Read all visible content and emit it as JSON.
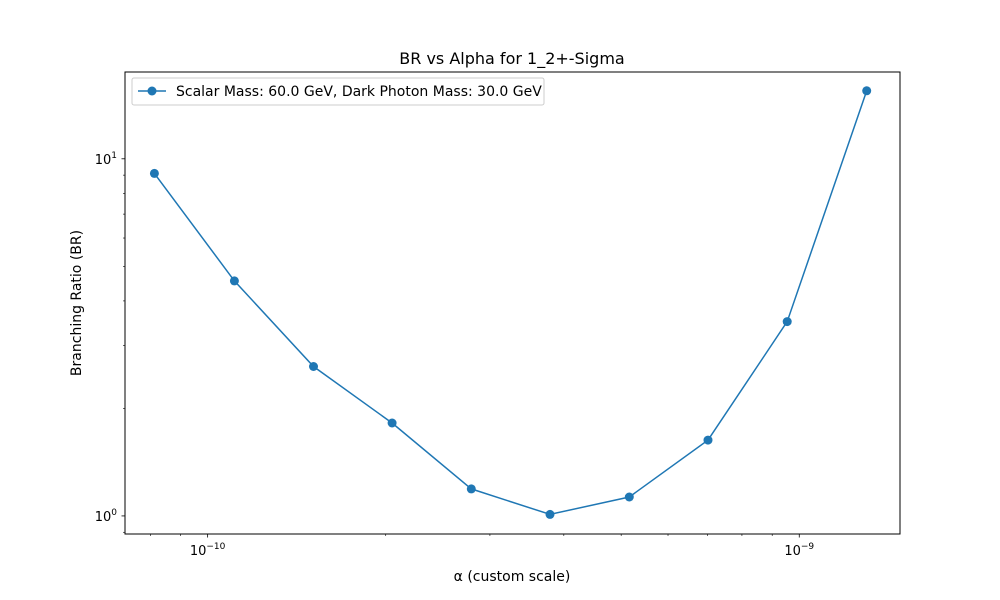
{
  "chart_data": {
    "type": "line",
    "title": "BR vs Alpha for 1_2+-Sigma",
    "xlabel": "α (custom scale)",
    "ylabel": "Branching Ratio (BR)",
    "x_scale": "log",
    "y_scale": "log",
    "xlim": [
      7.25e-11,
      1.48e-09
    ],
    "ylim": [
      0.89,
      17.5
    ],
    "x_ticks": [
      {
        "value": 1e-10,
        "base": "10",
        "exp": "−10"
      },
      {
        "value": 1e-09,
        "base": "10",
        "exp": "−9"
      }
    ],
    "y_ticks": [
      {
        "value": 1,
        "base": "10",
        "exp": "0"
      },
      {
        "value": 10,
        "base": "10",
        "exp": "1"
      }
    ],
    "grid": false,
    "legend_position": "upper-left",
    "series": [
      {
        "name": "Scalar Mass: 60.0 GeV, Dark Photon Mass: 30.0 GeV",
        "color": "#1f77b4",
        "marker": "circle",
        "x": [
          8.13e-11,
          1.11e-10,
          1.51e-10,
          2.05e-10,
          2.79e-10,
          3.79e-10,
          5.16e-10,
          7.01e-10,
          9.54e-10,
          1.3e-09
        ],
        "y": [
          9.1,
          4.55,
          2.62,
          1.82,
          1.19,
          1.01,
          1.13,
          1.63,
          3.5,
          15.5
        ]
      }
    ]
  }
}
